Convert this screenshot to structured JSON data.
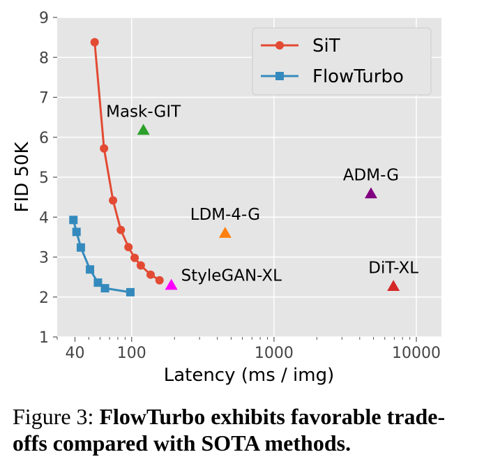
{
  "chart_data": {
    "type": "scatter",
    "xlabel": "Latency (ms / img)",
    "ylabel": "FID 50K",
    "xscale": "log",
    "xlim": [
      30,
      15000
    ],
    "ylim": [
      1,
      9
    ],
    "x_ticks": [
      {
        "value": 40,
        "label": "40"
      },
      {
        "value": 100,
        "label": "100"
      },
      {
        "value": 1000,
        "label": "1000"
      },
      {
        "value": 10000,
        "label": "10000"
      }
    ],
    "y_ticks": [
      {
        "value": 1,
        "label": "1"
      },
      {
        "value": 2,
        "label": "2"
      },
      {
        "value": 3,
        "label": "3"
      },
      {
        "value": 4,
        "label": "4"
      },
      {
        "value": 5,
        "label": "5"
      },
      {
        "value": 6,
        "label": "6"
      },
      {
        "value": 7,
        "label": "7"
      },
      {
        "value": 8,
        "label": "8"
      },
      {
        "value": 9,
        "label": "9"
      }
    ],
    "grid": true,
    "legend_position": "top-right",
    "series": [
      {
        "name": "SiT",
        "color": "#E24A33",
        "marker": "circle",
        "points": [
          {
            "x": 55,
            "y": 8.38
          },
          {
            "x": 64,
            "y": 5.72
          },
          {
            "x": 74,
            "y": 4.42
          },
          {
            "x": 84,
            "y": 3.68
          },
          {
            "x": 95,
            "y": 3.25
          },
          {
            "x": 105,
            "y": 2.98
          },
          {
            "x": 116,
            "y": 2.79
          },
          {
            "x": 136,
            "y": 2.56
          },
          {
            "x": 157,
            "y": 2.42
          }
        ]
      },
      {
        "name": "FlowTurbo",
        "color": "#348ABD",
        "marker": "square",
        "points": [
          {
            "x": 39,
            "y": 3.93
          },
          {
            "x": 41,
            "y": 3.63
          },
          {
            "x": 44,
            "y": 3.24
          },
          {
            "x": 51,
            "y": 2.69
          },
          {
            "x": 58,
            "y": 2.36
          },
          {
            "x": 65,
            "y": 2.22
          },
          {
            "x": 98,
            "y": 2.12
          }
        ]
      }
    ],
    "points": [
      {
        "label": "Mask-GIT",
        "x": 121,
        "y": 6.18,
        "color": "#2CA02C",
        "marker": "triangle",
        "label_side": "above"
      },
      {
        "label": "LDM-4-G",
        "x": 454,
        "y": 3.6,
        "color": "#FF7F0E",
        "marker": "triangle",
        "label_side": "above"
      },
      {
        "label": "StyleGAN-XL",
        "x": 190,
        "y": 2.3,
        "color": "#FF00FF",
        "marker": "triangle",
        "label_side": "right"
      },
      {
        "label": "ADM-G",
        "x": 4800,
        "y": 4.59,
        "color": "#800080",
        "marker": "triangle",
        "label_side": "above"
      },
      {
        "label": "DiT-XL",
        "x": 6900,
        "y": 2.27,
        "color": "#D62728",
        "marker": "triangle",
        "label_side": "above"
      }
    ]
  },
  "caption": {
    "prefix": "Figure 3: ",
    "bold": "FlowTurbo exhibits favorable trade-offs compared with SOTA methods."
  }
}
